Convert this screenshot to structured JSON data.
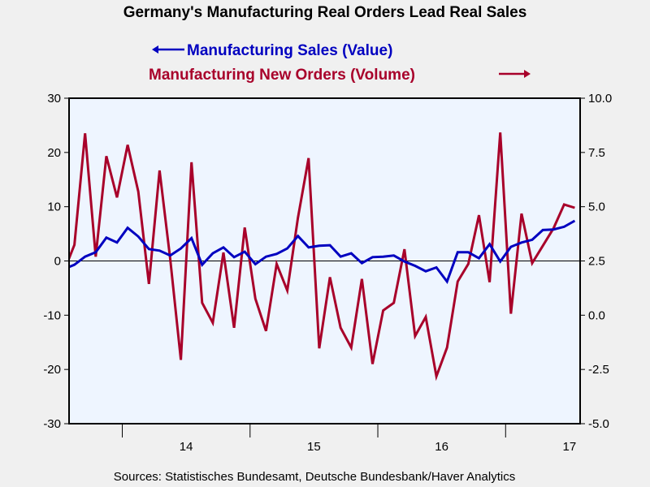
{
  "chart_data": {
    "type": "line",
    "title": "Germany's Manufacturing Real Orders Lead Real Sales",
    "source": "Sources:  Statistisches Bundesamt, Deutsche Bundesbank/Haver Analytics",
    "x_start": "2013-07",
    "x_range_visible": [
      "2013-08",
      "2017-07"
    ],
    "x_tick_labels": [
      "14",
      "15",
      "16",
      "17"
    ],
    "y_left": {
      "ylim": [
        -30,
        30
      ],
      "ticks": [
        "30",
        "20",
        "10",
        "0",
        "-10",
        "-20",
        "-30"
      ],
      "tick_values": [
        30,
        20,
        10,
        0,
        -10,
        -20,
        -30
      ]
    },
    "y_right": {
      "ylim": [
        -5.0,
        10.0
      ],
      "ticks": [
        "10.0",
        "7.5",
        "5.0",
        "2.5",
        "0.0",
        "-2.5",
        "-5.0"
      ],
      "tick_values": [
        10,
        7.5,
        5,
        2.5,
        0,
        -2.5,
        -5
      ]
    },
    "reference_line": 0,
    "grid": false,
    "series": [
      {
        "name": "Manufacturing Sales (Value)",
        "legend_label": "Manufacturing Sales (Value)",
        "axis": "left",
        "color": "#0000c0",
        "values": [
          -1.5,
          -0.7,
          0.8,
          1.6,
          4.3,
          3.4,
          6.1,
          4.5,
          2.2,
          1.9,
          1.0,
          2.3,
          4.2,
          -0.7,
          1.4,
          2.5,
          0.7,
          1.7,
          -0.6,
          0.8,
          1.3,
          2.3,
          4.6,
          2.5,
          2.8,
          2.9,
          0.8,
          1.4,
          -0.4,
          0.7,
          0.8,
          1.0,
          -0.1,
          -0.9,
          -1.9,
          -1.2,
          -3.8,
          1.6,
          1.6,
          0.5,
          3.1,
          -0.1,
          2.6,
          3.4,
          3.9,
          5.7,
          5.8,
          6.3,
          7.4
        ]
      },
      {
        "name": "Manufacturing New Orders (Volume)",
        "legend_label": "Manufacturing New Orders (Volume)",
        "axis": "right",
        "color": "#a8002a",
        "values": [
          2.0,
          3.24,
          8.38,
          2.7,
          7.33,
          5.43,
          7.85,
          5.7,
          1.44,
          6.67,
          2.59,
          -2.06,
          7.05,
          0.57,
          -0.35,
          2.89,
          -0.58,
          4.04,
          0.76,
          -0.73,
          2.36,
          1.14,
          4.49,
          7.24,
          -1.53,
          1.75,
          -0.58,
          -1.49,
          1.67,
          -2.25,
          0.22,
          0.57,
          3.04,
          -0.96,
          -0.08,
          -2.82,
          -1.49,
          1.55,
          2.36,
          4.61,
          1.52,
          8.42,
          0.07,
          4.68,
          2.4,
          3.2,
          4.0,
          5.1,
          4.95
        ]
      }
    ]
  }
}
